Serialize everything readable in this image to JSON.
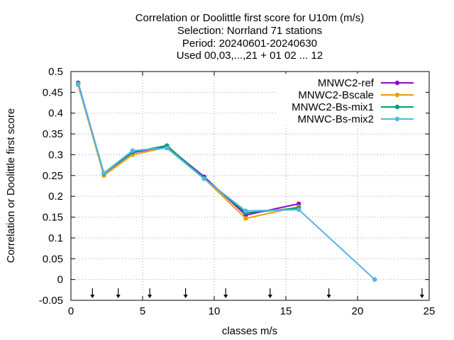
{
  "chart_data": {
    "type": "line",
    "title": [
      "Correlation or Doolittle first score  for U10m (m/s)",
      "Selection: Norrland     71 stations",
      "Period: 20240601-20240630",
      "Used 00,03,...,21 + 01 02 ... 12"
    ],
    "xlabel": "classes m/s",
    "ylabel": "Correlation or Doolittle first score",
    "xlim": [
      0,
      25
    ],
    "ylim": [
      -0.05,
      0.5
    ],
    "xticks": [
      0,
      5,
      10,
      15,
      20,
      25
    ],
    "yticks": [
      -0.05,
      0,
      0.05,
      0.1,
      0.15,
      0.2,
      0.25,
      0.3,
      0.35,
      0.4,
      0.45,
      0.5
    ],
    "xtick_labels": [
      "0",
      "5",
      "10",
      "15",
      "20",
      "25"
    ],
    "ytick_labels": [
      "-0.05",
      "0",
      "0.05",
      "0.1",
      "0.15",
      "0.2",
      "0.25",
      "0.3",
      "0.35",
      "0.4",
      "0.45",
      "0.5"
    ],
    "grid": true,
    "legend_position": "top-right",
    "class_arrows_x": [
      1.5,
      3.3,
      5.5,
      8.0,
      10.8,
      13.9,
      18.0,
      24.5
    ],
    "series": [
      {
        "name": "MNWC2-ref",
        "color": "#9400d3",
        "x": [
          0.5,
          2.3,
          4.3,
          6.7,
          9.3,
          12.2,
          15.9
        ],
        "y": [
          0.473,
          0.255,
          0.305,
          0.32,
          0.247,
          0.155,
          0.182
        ]
      },
      {
        "name": "MNWC2-Bscale",
        "color": "#e69f00",
        "x": [
          0.5,
          2.3,
          4.3,
          6.7,
          9.3,
          12.2,
          15.9
        ],
        "y": [
          0.468,
          0.25,
          0.3,
          0.318,
          0.243,
          0.147,
          0.175
        ]
      },
      {
        "name": "MNWC2-Bs-mix1",
        "color": "#009e73",
        "x": [
          0.5,
          2.3,
          4.3,
          6.7,
          9.3,
          12.2,
          15.9
        ],
        "y": [
          0.472,
          0.255,
          0.306,
          0.322,
          0.244,
          0.16,
          0.172
        ]
      },
      {
        "name": "MNWC-Bs-mix2",
        "color": "#56b4e9",
        "x": [
          0.5,
          2.3,
          4.3,
          6.7,
          9.3,
          12.2,
          15.9,
          21.2
        ],
        "y": [
          0.47,
          0.256,
          0.31,
          0.316,
          0.242,
          0.165,
          0.168,
          0.0
        ]
      }
    ]
  }
}
